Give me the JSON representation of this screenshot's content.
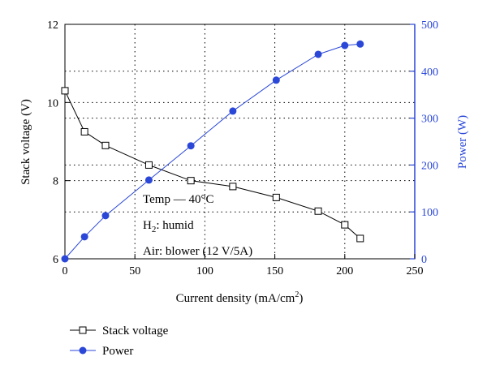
{
  "chart_data": {
    "type": "line",
    "xlabel": "Current density (mA/cm",
    "xlabel_sup": "2",
    "xlabel_tail": ")",
    "ylabel_left": "Stack voltage (V)",
    "ylabel_right": "Power (W)",
    "xlim": [
      0,
      250
    ],
    "ylim_left": [
      6,
      12
    ],
    "ylim_right": [
      0,
      500
    ],
    "x_ticks": [
      "0",
      "50",
      "100",
      "150",
      "200",
      "250"
    ],
    "y_left_ticks": [
      "6",
      "8",
      "10",
      "12"
    ],
    "y_right_ticks": [
      "0",
      "100",
      "200",
      "300",
      "400",
      "500"
    ],
    "grid": "dotted",
    "legend_position": "below-left",
    "colors": {
      "voltage": "#000000",
      "power": "#2a47d8"
    },
    "annotations": {
      "temp": "Temp — 40°C",
      "h2_prefix": "H",
      "h2_sub": "2",
      "h2_suffix": ": humid",
      "air": "Air: blower (12 V/5A)"
    },
    "series": [
      {
        "name": "Stack voltage",
        "axis": "left",
        "marker": "open-square",
        "x": [
          0,
          14,
          29,
          60,
          90,
          120,
          151,
          181,
          200,
          211
        ],
        "values": [
          10.3,
          9.25,
          8.9,
          8.4,
          8.0,
          7.85,
          7.57,
          7.22,
          6.87,
          6.52
        ]
      },
      {
        "name": "Power",
        "axis": "right",
        "marker": "filled-circle",
        "x": [
          0,
          14,
          29,
          60,
          90,
          120,
          151,
          181,
          200,
          211
        ],
        "values": [
          0,
          47,
          92,
          168,
          241,
          315,
          381,
          436,
          455,
          458
        ]
      }
    ]
  }
}
